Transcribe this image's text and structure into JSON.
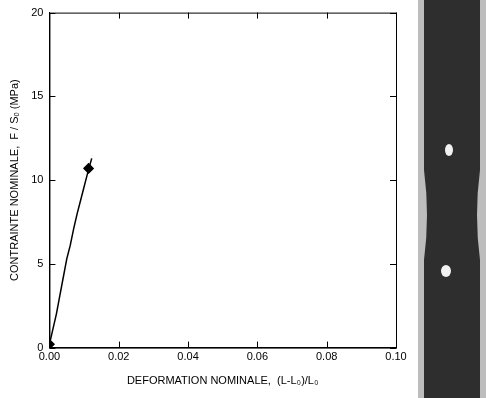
{
  "chart_data": {
    "type": "line",
    "x_label": "DEFORMATION NOMINALE,  (L-L₀)/L₀",
    "y_label": "CONTRAINTE NOMINALE,  F / Sₒ (MPa)",
    "xlim": [
      0,
      0.1
    ],
    "xticks": [
      {
        "value": 0,
        "label": "0.00"
      },
      0.02,
      0.04,
      0.06,
      0.08,
      {
        "value": 0.1,
        "label": "0.10"
      }
    ],
    "ylim": [
      0,
      20
    ],
    "yticks": [
      0,
      5,
      10,
      15,
      20
    ],
    "grid": false,
    "series": [
      {
        "x": [
          0,
          0.001,
          0.002,
          0.003,
          0.004,
          0.005,
          0.006,
          0.007,
          0.008,
          0.009,
          0.01,
          0.011,
          0.0122
        ],
        "values": [
          0.2,
          1.1,
          2.0,
          3.1,
          4.2,
          5.3,
          6.1,
          7.1,
          8.0,
          8.8,
          9.6,
          10.4,
          11.3
        ],
        "color": "#000000",
        "marker": "none",
        "line_style": "solid"
      },
      {
        "x": [
          0,
          0.0113
        ],
        "values": [
          0.2,
          10.7
        ],
        "type": "scatter",
        "color": "#000000",
        "marker": "diamond"
      }
    ]
  }
}
